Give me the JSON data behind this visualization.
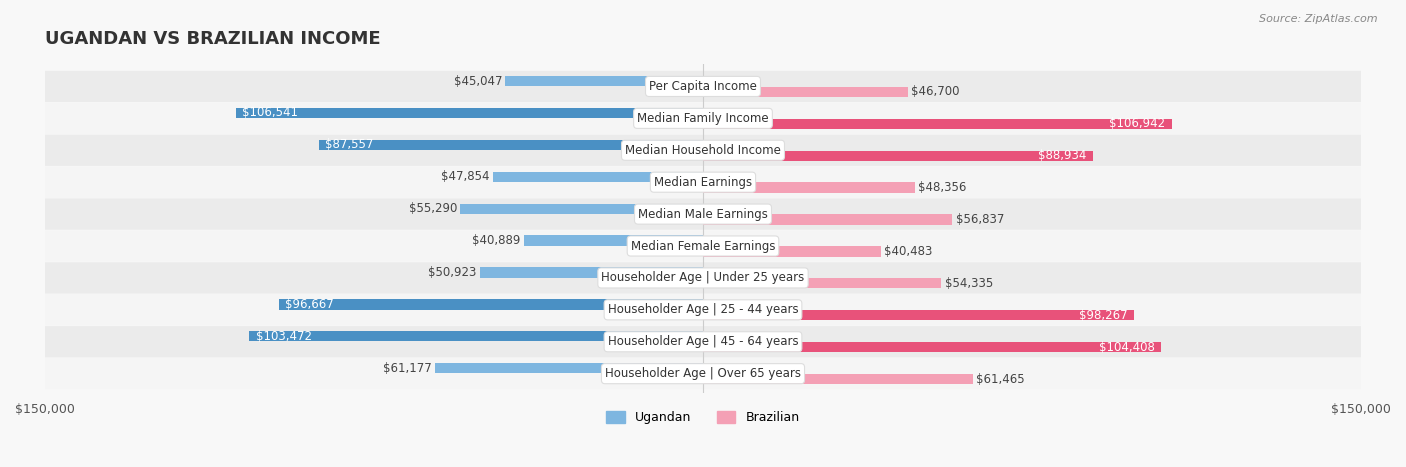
{
  "title": "UGANDAN VS BRAZILIAN INCOME",
  "source": "Source: ZipAtlas.com",
  "categories": [
    "Per Capita Income",
    "Median Family Income",
    "Median Household Income",
    "Median Earnings",
    "Median Male Earnings",
    "Median Female Earnings",
    "Householder Age | Under 25 years",
    "Householder Age | 25 - 44 years",
    "Householder Age | 45 - 64 years",
    "Householder Age | Over 65 years"
  ],
  "ugandan_values": [
    45047,
    106541,
    87557,
    47854,
    55290,
    40889,
    50923,
    96667,
    103472,
    61177
  ],
  "brazilian_values": [
    46700,
    106942,
    88934,
    48356,
    56837,
    40483,
    54335,
    98267,
    104408,
    61465
  ],
  "ugandan_labels": [
    "$45,047",
    "$106,541",
    "$87,557",
    "$47,854",
    "$55,290",
    "$40,889",
    "$50,923",
    "$96,667",
    "$103,472",
    "$61,177"
  ],
  "brazilian_labels": [
    "$46,700",
    "$106,942",
    "$88,934",
    "$48,356",
    "$56,837",
    "$40,483",
    "$54,335",
    "$98,267",
    "$104,408",
    "$61,465"
  ],
  "ugandan_color": "#7EB6E0",
  "ugandan_color_dark": "#4A90C4",
  "brazilian_color": "#F4A0B5",
  "brazilian_color_dark": "#E8527A",
  "max_value": 150000,
  "xlim": 150000,
  "bg_color": "#f5f5f5",
  "bar_bg_color": "#ffffff",
  "row_bg_even": "#f0f0f0",
  "row_bg_odd": "#fafafa",
  "label_fontsize": 8.5,
  "title_fontsize": 13,
  "source_fontsize": 8,
  "value_label_threshold": 80000
}
